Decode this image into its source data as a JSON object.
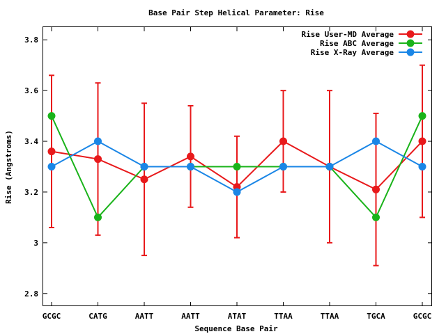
{
  "chart_data": {
    "type": "line",
    "title": "Base Pair Step Helical Parameter: Rise",
    "xlabel": "Sequence Base Pair",
    "ylabel": "Rise (Angstroms)",
    "categories": [
      "GCGC",
      "CATG",
      "AATT",
      "AATT",
      "ATAT",
      "TTAA",
      "TTAA",
      "TGCA",
      "GCGC"
    ],
    "ylim": [
      2.75,
      3.85
    ],
    "yticks": [
      2.8,
      3.0,
      3.2,
      3.4,
      3.6,
      3.8
    ],
    "ytick_labels": [
      "2.8",
      "3",
      "3.2",
      "3.4",
      "3.6",
      "3.8"
    ],
    "grid": false,
    "legend_position": "top-right",
    "series": [
      {
        "name": "Rise User-MD Average",
        "color": "#e8191b",
        "values": [
          3.36,
          3.33,
          3.25,
          3.34,
          3.22,
          3.4,
          3.3,
          3.21,
          3.4
        ],
        "error_low": [
          3.06,
          3.03,
          2.95,
          3.14,
          3.02,
          3.2,
          3.0,
          2.91,
          3.1
        ],
        "error_high": [
          3.66,
          3.63,
          3.55,
          3.54,
          3.42,
          3.6,
          3.6,
          3.51,
          3.7
        ]
      },
      {
        "name": "Rise ABC Average",
        "color": "#1ab31a",
        "values": [
          3.5,
          3.1,
          3.3,
          3.3,
          3.3,
          3.3,
          3.3,
          3.1,
          3.5
        ]
      },
      {
        "name": "Rise X-Ray Average",
        "color": "#1a86e6",
        "values": [
          3.3,
          3.4,
          3.3,
          3.3,
          3.2,
          3.3,
          3.3,
          3.4,
          3.3
        ]
      }
    ]
  }
}
